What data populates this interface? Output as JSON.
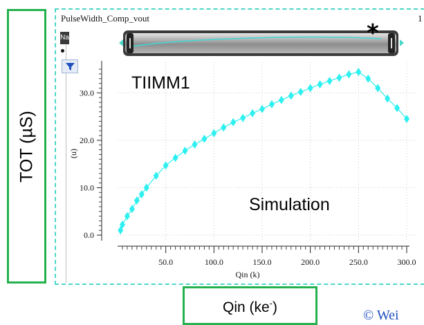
{
  "window": {
    "title": "PulseWidth_Comp_vout",
    "title_right": "1",
    "name_tag": "Na"
  },
  "labels": {
    "y_box": "TOT (µS)",
    "x_box": "Qin (ke",
    "x_box_sup": "-",
    "x_box_close": ")",
    "star": "*",
    "copyright": "© Wei"
  },
  "icons": {
    "filter": "filter-funnel-icon",
    "scroll_left": "triangle-left-icon",
    "scroll_right": "triangle-right-icon"
  },
  "colors": {
    "series": "#2ef0f0",
    "label_box_border": "#22b14c",
    "plot_frame": "#4bd6c8",
    "copyright": "#1f4fbf"
  },
  "chart_data": {
    "type": "line",
    "xlabel": "Qin (k)",
    "ylabel": "(u)",
    "xlim": [
      0,
      300
    ],
    "ylim": [
      0,
      35
    ],
    "xticks": [
      "50.0",
      "100.0",
      "150.0",
      "200.0",
      "250.0",
      "300.0"
    ],
    "yticks": [
      "0.0",
      "10.0",
      "20.0",
      "30.0"
    ],
    "annotations": [
      "TIIMM1",
      "Simulation"
    ],
    "series": [
      {
        "x": [
          3,
          5,
          10,
          15,
          20,
          25,
          30,
          40,
          50,
          60,
          70,
          80,
          90,
          100,
          110,
          120,
          130,
          140,
          150,
          160,
          170,
          180,
          190,
          200,
          210,
          220,
          230,
          240,
          250,
          260,
          270,
          280,
          290,
          300
        ],
        "y": [
          1.0,
          2.2,
          4.0,
          5.5,
          7.3,
          8.6,
          10.0,
          12.5,
          14.7,
          16.3,
          17.8,
          19.1,
          20.3,
          21.5,
          22.7,
          23.8,
          24.7,
          25.7,
          26.6,
          27.6,
          28.5,
          29.4,
          30.2,
          31.0,
          31.8,
          32.5,
          33.2,
          33.9,
          34.4,
          33.0,
          31.0,
          28.8,
          26.8,
          24.5
        ]
      }
    ]
  }
}
